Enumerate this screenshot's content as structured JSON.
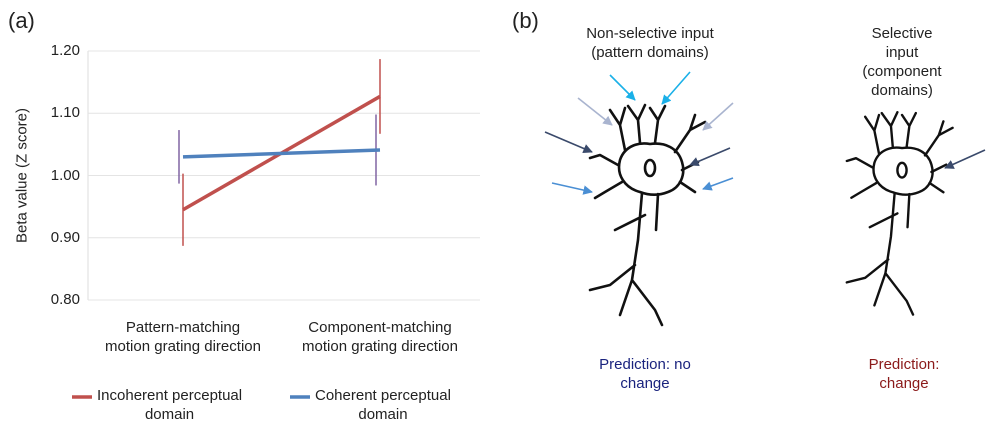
{
  "chart_data": {
    "type": "line",
    "panel_label": "(a)",
    "y_label": "Beta value (Z score)",
    "categories": [
      "Pattern-matching\nmotion grating direction",
      "Component-matching\nmotion grating direction"
    ],
    "series": [
      {
        "name": "Incoherent perceptual\ndomain",
        "color": "#c0504d",
        "error_color": "#c0504d",
        "values": [
          0.945,
          1.127
        ],
        "errors": [
          0.058,
          0.06
        ]
      },
      {
        "name": "Coherent perceptual\ndomain",
        "color": "#4f81bd",
        "error_color": "#8064a2",
        "values": [
          1.03,
          1.041
        ],
        "errors": [
          0.043,
          0.057
        ]
      }
    ],
    "ylim": [
      0.8,
      1.2
    ],
    "yticks": [
      {
        "value": 0.8,
        "label": "0.80"
      },
      {
        "value": 0.9,
        "label": "0.90"
      },
      {
        "value": 1.0,
        "label": "1.00"
      },
      {
        "value": 1.1,
        "label": "1.10"
      },
      {
        "value": 1.2,
        "label": "1.20"
      }
    ],
    "grid": true
  },
  "diagram": {
    "panel_label": "(b)",
    "left": {
      "title": "Non-selective input\n(pattern domains)",
      "prediction": "Prediction: no\nchange",
      "prediction_color": "#1a237e"
    },
    "right": {
      "title": "Selective input\n(component domains)",
      "prediction": "Prediction:\nchange",
      "prediction_color": "#8b1a1a"
    }
  }
}
